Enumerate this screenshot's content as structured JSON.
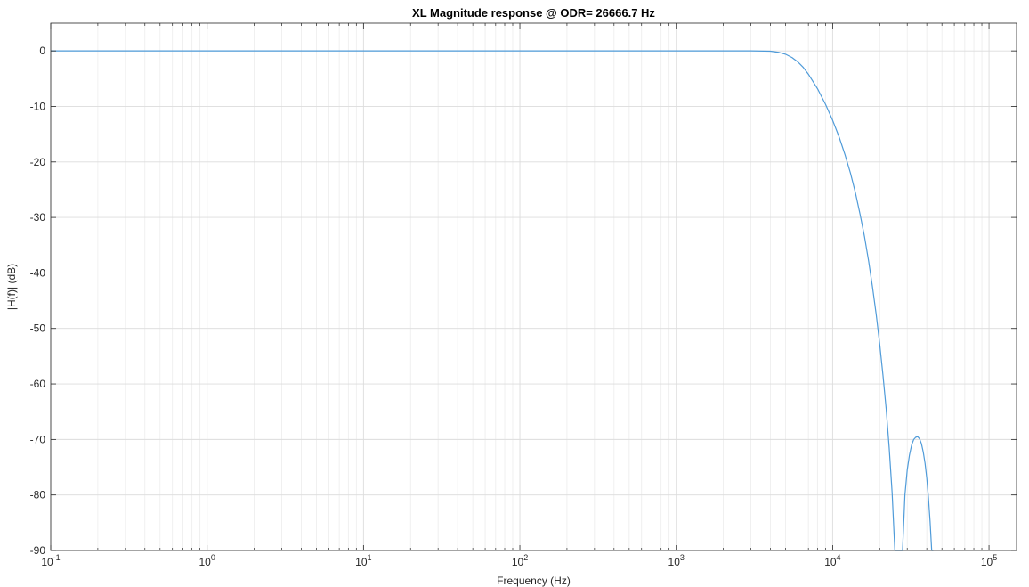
{
  "chart_data": {
    "type": "line",
    "title": "XL Magnitude response @ ODR= 26666.7 Hz",
    "xlabel": "Frequency (Hz)",
    "ylabel": "|H(f)| (dB)",
    "xscale": "log",
    "xlim": [
      0.1,
      150000
    ],
    "ylim": [
      -90,
      5
    ],
    "grid": true,
    "minor_grid": true,
    "x_ticks": [
      {
        "base": "10",
        "exp": "-1",
        "value": 0.1
      },
      {
        "base": "10",
        "exp": "0",
        "value": 1
      },
      {
        "base": "10",
        "exp": "1",
        "value": 10
      },
      {
        "base": "10",
        "exp": "2",
        "value": 100
      },
      {
        "base": "10",
        "exp": "3",
        "value": 1000
      },
      {
        "base": "10",
        "exp": "4",
        "value": 10000
      },
      {
        "base": "10",
        "exp": "5",
        "value": 100000
      }
    ],
    "y_ticks": [
      {
        "label": "0",
        "value": 0
      },
      {
        "label": "-10",
        "value": -10
      },
      {
        "label": "-20",
        "value": -20
      },
      {
        "label": "-30",
        "value": -30
      },
      {
        "label": "-40",
        "value": -40
      },
      {
        "label": "-50",
        "value": -50
      },
      {
        "label": "-60",
        "value": -60
      },
      {
        "label": "-70",
        "value": -70
      },
      {
        "label": "-80",
        "value": -80
      },
      {
        "label": "-90",
        "value": -90
      }
    ],
    "series": [
      {
        "color": "#4f9bd9",
        "x": [
          0.1,
          1,
          10,
          100,
          1000,
          3000,
          4000,
          4500,
          5000,
          5500,
          6000,
          6500,
          7000,
          8000,
          9000,
          10000,
          11000,
          12000,
          13000,
          14000,
          15000,
          16000,
          17000,
          18000,
          19000,
          20000,
          21000,
          22000,
          23000,
          24000,
          25000,
          26000,
          28000,
          29000,
          30000,
          31000,
          32000,
          33000,
          34000,
          35000,
          36000,
          37000,
          38000,
          39000,
          40000,
          41000,
          42000,
          43000,
          44000
        ],
        "y": [
          0,
          0,
          0,
          0,
          0,
          0,
          -0.05,
          -0.25,
          -0.6,
          -1.2,
          -2.0,
          -3.0,
          -4.2,
          -6.8,
          -9.6,
          -12.5,
          -15.5,
          -18.7,
          -22.0,
          -25.6,
          -29.5,
          -33.5,
          -37.9,
          -42.6,
          -47.5,
          -52.8,
          -58.5,
          -64.5,
          -71.5,
          -79.5,
          -90,
          -90,
          -90,
          -80,
          -75.5,
          -72.8,
          -71.0,
          -70.0,
          -69.6,
          -69.5,
          -69.9,
          -70.8,
          -72.3,
          -74.3,
          -77.0,
          -80.5,
          -84.8,
          -90,
          -90
        ]
      }
    ]
  }
}
